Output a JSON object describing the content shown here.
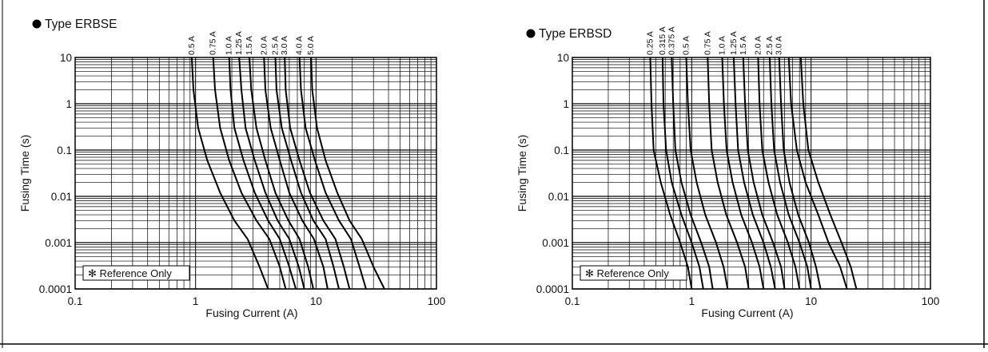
{
  "chart_data": [
    {
      "type": "line",
      "title": "Type ERBSE",
      "xlabel": "Fusing Current (A)",
      "ylabel": "Fusing Time (s)",
      "xscale": "log",
      "yscale": "log",
      "xlim": [
        0.1,
        100
      ],
      "ylim": [
        0.0001,
        10
      ],
      "xticks": [
        "0.1",
        "1",
        "10",
        "100"
      ],
      "yticks": [
        "10",
        "1",
        "0.1",
        "0.01",
        "0.001",
        "0.0001"
      ],
      "grid": true,
      "note": "✻ Reference Only",
      "series": [
        {
          "name": "0.5 A",
          "x": [
            0.93,
            0.96,
            1.05,
            1.25,
            1.6,
            2.1,
            2.7,
            3.4,
            4.0
          ],
          "y": [
            10,
            2,
            0.3,
            0.06,
            0.012,
            0.003,
            0.0012,
            0.0003,
            0.0001
          ]
        },
        {
          "name": "0.75 A",
          "x": [
            1.4,
            1.45,
            1.6,
            1.9,
            2.4,
            3.2,
            4.1,
            5.0,
            5.6
          ],
          "y": [
            10,
            2,
            0.3,
            0.06,
            0.012,
            0.003,
            0.0012,
            0.0003,
            0.0001
          ]
        },
        {
          "name": "1.0 A",
          "x": [
            1.9,
            1.95,
            2.1,
            2.5,
            3.1,
            4.0,
            5.0,
            6.0,
            6.8
          ],
          "y": [
            10,
            2,
            0.3,
            0.06,
            0.012,
            0.003,
            0.0012,
            0.0003,
            0.0001
          ]
        },
        {
          "name": "1.25 A",
          "x": [
            2.3,
            2.4,
            2.6,
            3.1,
            3.8,
            4.8,
            6.0,
            7.2,
            8.0
          ],
          "y": [
            10,
            2,
            0.3,
            0.06,
            0.012,
            0.003,
            0.0012,
            0.0003,
            0.0001
          ]
        },
        {
          "name": "1.5 A",
          "x": [
            2.8,
            2.9,
            3.2,
            3.8,
            4.6,
            5.9,
            7.3,
            8.6,
            9.5
          ],
          "y": [
            10,
            2,
            0.3,
            0.06,
            0.012,
            0.003,
            0.0012,
            0.0003,
            0.0001
          ]
        },
        {
          "name": "2.0 A",
          "x": [
            3.7,
            3.8,
            4.2,
            5.0,
            6.0,
            7.7,
            9.6,
            11.5,
            12.5
          ],
          "y": [
            10,
            2,
            0.3,
            0.06,
            0.012,
            0.003,
            0.0012,
            0.0003,
            0.0001
          ]
        },
        {
          "name": "2.5 A",
          "x": [
            4.6,
            4.7,
            5.2,
            6.2,
            7.5,
            9.5,
            12.0,
            14.0,
            15.5
          ],
          "y": [
            10,
            2,
            0.3,
            0.06,
            0.012,
            0.003,
            0.0012,
            0.0003,
            0.0001
          ]
        },
        {
          "name": "3.0 A",
          "x": [
            5.5,
            5.6,
            6.1,
            7.3,
            8.9,
            11.5,
            14.5,
            17.0,
            19.0
          ],
          "y": [
            10,
            2,
            0.3,
            0.06,
            0.012,
            0.003,
            0.0012,
            0.0003,
            0.0001
          ]
        },
        {
          "name": "4.0 A",
          "x": [
            7.3,
            7.5,
            8.2,
            9.8,
            12.0,
            15.5,
            19.5,
            23.0,
            26.0
          ],
          "y": [
            10,
            2,
            0.3,
            0.06,
            0.012,
            0.003,
            0.0012,
            0.0003,
            0.0001
          ]
        },
        {
          "name": "5.0 A",
          "x": [
            9.1,
            9.3,
            10.2,
            12.0,
            15.0,
            19.0,
            24.0,
            30.0,
            37.0
          ],
          "y": [
            10,
            2,
            0.3,
            0.06,
            0.012,
            0.003,
            0.0012,
            0.0003,
            0.0001
          ]
        }
      ]
    },
    {
      "type": "line",
      "title": "Type ERBSD",
      "xlabel": "Fusing Current (A)",
      "ylabel": "Fusing Time (s)",
      "xscale": "log",
      "yscale": "log",
      "xlim": [
        0.1,
        100
      ],
      "ylim": [
        0.0001,
        10
      ],
      "xticks": [
        "0.1",
        "1",
        "10",
        "100"
      ],
      "yticks": [
        "10",
        "1",
        "0.1",
        "0.01",
        "0.001",
        "0.0001"
      ],
      "grid": true,
      "note": "✻ Reference Only",
      "series": [
        {
          "name": "0.25 A",
          "x": [
            0.45,
            0.46,
            0.48,
            0.55,
            0.66,
            0.8,
            0.93,
            1.0
          ],
          "y": [
            10,
            1,
            0.1,
            0.02,
            0.004,
            0.001,
            0.0003,
            0.0001
          ]
        },
        {
          "name": "0.315 A",
          "x": [
            0.57,
            0.58,
            0.61,
            0.68,
            0.82,
            1.0,
            1.16,
            1.25
          ],
          "y": [
            10,
            1,
            0.1,
            0.02,
            0.004,
            0.001,
            0.0003,
            0.0001
          ]
        },
        {
          "name": "0.375 A",
          "x": [
            0.68,
            0.7,
            0.73,
            0.82,
            0.98,
            1.2,
            1.4,
            1.5
          ],
          "y": [
            10,
            1,
            0.1,
            0.02,
            0.004,
            0.001,
            0.0003,
            0.0001
          ]
        },
        {
          "name": "0.5 A",
          "x": [
            0.9,
            0.93,
            0.98,
            1.1,
            1.3,
            1.6,
            1.85,
            2.0
          ],
          "y": [
            10,
            1,
            0.1,
            0.02,
            0.004,
            0.001,
            0.0003,
            0.0001
          ]
        },
        {
          "name": "0.75 A",
          "x": [
            1.36,
            1.4,
            1.47,
            1.65,
            1.95,
            2.4,
            2.8,
            3.0
          ],
          "y": [
            10,
            1,
            0.1,
            0.02,
            0.004,
            0.001,
            0.0003,
            0.0001
          ]
        },
        {
          "name": "1.0 A",
          "x": [
            1.8,
            1.86,
            1.96,
            2.2,
            2.6,
            3.2,
            3.7,
            4.0
          ],
          "y": [
            10,
            1,
            0.1,
            0.02,
            0.004,
            0.001,
            0.0003,
            0.0001
          ]
        },
        {
          "name": "1.25 A",
          "x": [
            2.25,
            2.33,
            2.45,
            2.75,
            3.25,
            4.0,
            4.6,
            5.0
          ],
          "y": [
            10,
            1,
            0.1,
            0.02,
            0.004,
            0.001,
            0.0003,
            0.0001
          ]
        },
        {
          "name": "1.5 A",
          "x": [
            2.7,
            2.8,
            2.95,
            3.3,
            3.9,
            4.8,
            5.6,
            6.0
          ],
          "y": [
            10,
            1,
            0.1,
            0.02,
            0.004,
            0.001,
            0.0003,
            0.0001
          ]
        },
        {
          "name": "2.0 A",
          "x": [
            3.6,
            3.7,
            3.9,
            4.4,
            5.2,
            6.4,
            7.4,
            8.0
          ],
          "y": [
            10,
            1,
            0.1,
            0.02,
            0.004,
            0.001,
            0.0003,
            0.0001
          ]
        },
        {
          "name": "2.5 A",
          "x": [
            4.5,
            4.65,
            4.9,
            5.5,
            6.5,
            8.0,
            9.3,
            10.0
          ],
          "y": [
            10,
            1,
            0.1,
            0.02,
            0.004,
            0.001,
            0.0003,
            0.0001
          ]
        },
        {
          "name": "3.0 A",
          "x": [
            5.4,
            5.6,
            5.9,
            6.6,
            7.8,
            9.6,
            11.0,
            12.0
          ],
          "y": [
            10,
            1,
            0.1,
            0.02,
            0.004,
            0.001,
            0.0003,
            0.0001
          ]
        },
        {
          "name": "",
          "x": [
            6.5,
            6.8,
            7.6,
            9.0,
            11.5,
            14.0,
            17.5,
            20.0
          ],
          "y": [
            10,
            1,
            0.1,
            0.02,
            0.004,
            0.001,
            0.0003,
            0.0001
          ]
        },
        {
          "name": "",
          "x": [
            8.2,
            8.6,
            9.5,
            11.5,
            14.5,
            18.0,
            21.5,
            24.0
          ],
          "y": [
            10,
            1,
            0.1,
            0.02,
            0.004,
            0.001,
            0.0003,
            0.0001
          ]
        }
      ]
    }
  ]
}
